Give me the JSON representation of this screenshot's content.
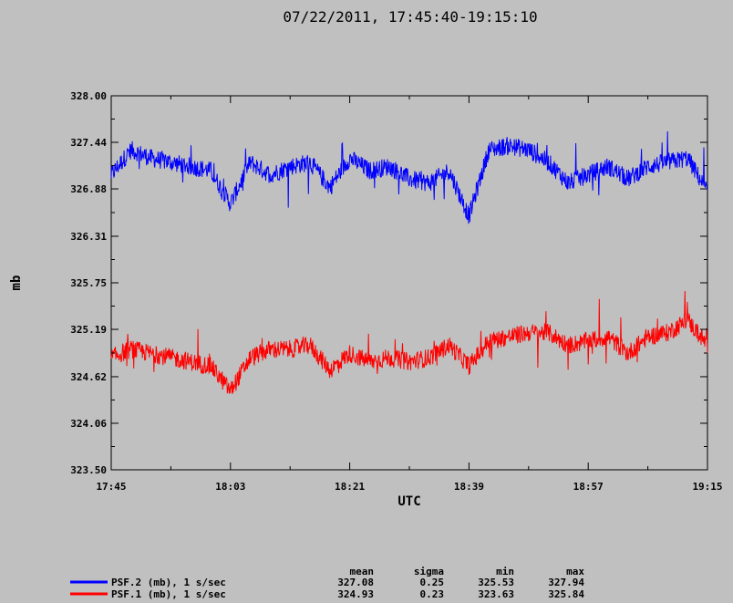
{
  "chart_data": {
    "type": "line",
    "title": "07/22/2011, 17:45:40-19:15:10",
    "xlabel": "UTC",
    "ylabel": "mb",
    "x_range": [
      "17:45",
      "19:15"
    ],
    "ylim": [
      323.5,
      328.0
    ],
    "y_ticks": [
      "323.50",
      "324.06",
      "324.62",
      "325.19",
      "325.75",
      "326.31",
      "326.88",
      "327.44",
      "328.00"
    ],
    "x_ticks": [
      "17:45",
      "18:03",
      "18:21",
      "18:39",
      "18:57",
      "19:15"
    ],
    "grid": false,
    "series": [
      {
        "name": "PSF.2 (mb), 1 s/sec",
        "color": "#0000ff",
        "x": [
          "17:45",
          "17:48",
          "17:51",
          "17:54",
          "17:57",
          "18:00",
          "18:03",
          "18:06",
          "18:09",
          "18:12",
          "18:15",
          "18:18",
          "18:21",
          "18:24",
          "18:27",
          "18:30",
          "18:33",
          "18:36",
          "18:39",
          "18:42",
          "18:45",
          "18:48",
          "18:51",
          "18:54",
          "18:57",
          "19:00",
          "19:03",
          "19:06",
          "19:09",
          "19:12",
          "19:15"
        ],
        "values": [
          327.05,
          327.35,
          327.25,
          327.2,
          327.15,
          327.1,
          326.7,
          327.2,
          327.05,
          327.15,
          327.2,
          326.9,
          327.25,
          327.1,
          327.15,
          327.0,
          326.95,
          327.1,
          326.55,
          327.35,
          327.4,
          327.35,
          327.2,
          326.95,
          327.05,
          327.15,
          327.0,
          327.15,
          327.2,
          327.25,
          326.85
        ]
      },
      {
        "name": "PSF.1 (mb), 1 s/sec",
        "color": "#ff0000",
        "x": [
          "17:45",
          "17:48",
          "17:51",
          "17:54",
          "17:57",
          "18:00",
          "18:03",
          "18:06",
          "18:09",
          "18:12",
          "18:15",
          "18:18",
          "18:21",
          "18:24",
          "18:27",
          "18:30",
          "18:33",
          "18:36",
          "18:39",
          "18:42",
          "18:45",
          "18:48",
          "18:51",
          "18:54",
          "18:57",
          "19:00",
          "19:03",
          "19:06",
          "19:09",
          "19:12",
          "19:15"
        ],
        "values": [
          324.85,
          324.95,
          324.9,
          324.85,
          324.8,
          324.75,
          324.45,
          324.85,
          324.95,
          324.95,
          325.0,
          324.7,
          324.9,
          324.8,
          324.85,
          324.8,
          324.85,
          325.0,
          324.75,
          325.05,
          325.1,
          325.15,
          325.15,
          325.0,
          325.05,
          325.1,
          324.9,
          325.1,
          325.15,
          325.3,
          325.0
        ]
      }
    ]
  },
  "legend": {
    "headers": [
      "mean",
      "sigma",
      "min",
      "max"
    ],
    "rows": [
      {
        "name": "PSF.2 (mb), 1 s/sec",
        "color": "#0000ff",
        "mean": "327.08",
        "sigma": "0.25",
        "min": "325.53",
        "max": "327.94"
      },
      {
        "name": "PSF.1 (mb), 1 s/sec",
        "color": "#ff0000",
        "mean": "324.93",
        "sigma": "0.23",
        "min": "323.63",
        "max": "325.84"
      }
    ]
  }
}
